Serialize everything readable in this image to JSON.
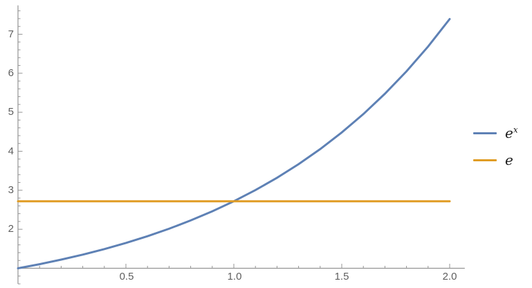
{
  "chart_data": {
    "type": "line",
    "title": "",
    "xlabel": "",
    "ylabel": "",
    "x": [
      0,
      0.1,
      0.2,
      0.3,
      0.4,
      0.5,
      0.6,
      0.7,
      0.8,
      0.9,
      1.0,
      1.1,
      1.2,
      1.3,
      1.4,
      1.5,
      1.6,
      1.7,
      1.8,
      1.9,
      2.0
    ],
    "series": [
      {
        "name": "e^x",
        "color": "#5e81b5",
        "values": [
          1,
          1.105,
          1.221,
          1.35,
          1.492,
          1.649,
          1.822,
          2.014,
          2.226,
          2.46,
          2.718,
          3.004,
          3.32,
          3.669,
          4.055,
          4.482,
          4.953,
          5.474,
          6.05,
          6.686,
          7.389
        ]
      },
      {
        "name": "e",
        "color": "#e09c24",
        "constant": 2.718
      }
    ],
    "x_axis": {
      "range": [
        0,
        2.04
      ],
      "major_ticks": [
        0.5,
        1.0,
        1.5,
        2.0
      ],
      "tick_labels": [
        "0.5",
        "1.0",
        "1.5",
        "2.0"
      ],
      "minor_step": 0.1
    },
    "y_axis": {
      "range": [
        0.6,
        7.74
      ],
      "major_ticks": [
        2,
        3,
        4,
        5,
        6,
        7
      ],
      "tick_labels": [
        "2",
        "3",
        "4",
        "5",
        "6",
        "7"
      ],
      "minor_step": 0.2
    },
    "grid": "off",
    "legend": {
      "position": "right",
      "items": [
        {
          "label_base": "e",
          "label_sup": "x",
          "color": "#5e81b5"
        },
        {
          "label_base": "e",
          "label_sup": "",
          "color": "#e09c24"
        }
      ]
    },
    "colors": {
      "axis": "#949494",
      "tick_label": "#5e5e5e",
      "background": "#ffffff"
    }
  }
}
